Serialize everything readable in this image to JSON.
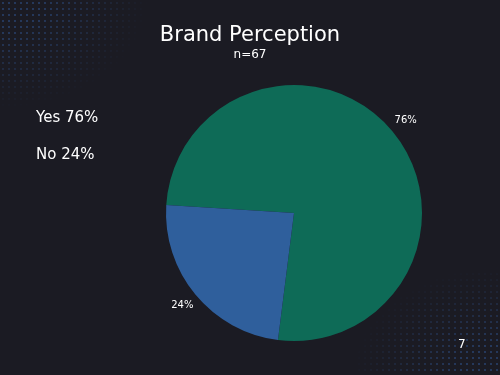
{
  "chart_data": {
    "type": "pie",
    "title": "Brand Perception",
    "subtitle": "n=67",
    "categories": [
      "Yes",
      "No"
    ],
    "values": [
      76,
      24
    ],
    "value_labels": [
      "76%",
      "24%"
    ],
    "colors": [
      "#0e6b57",
      "#2f5f9c"
    ],
    "data_labels": true,
    "legend": "left",
    "annotations": [
      "7"
    ]
  }
}
